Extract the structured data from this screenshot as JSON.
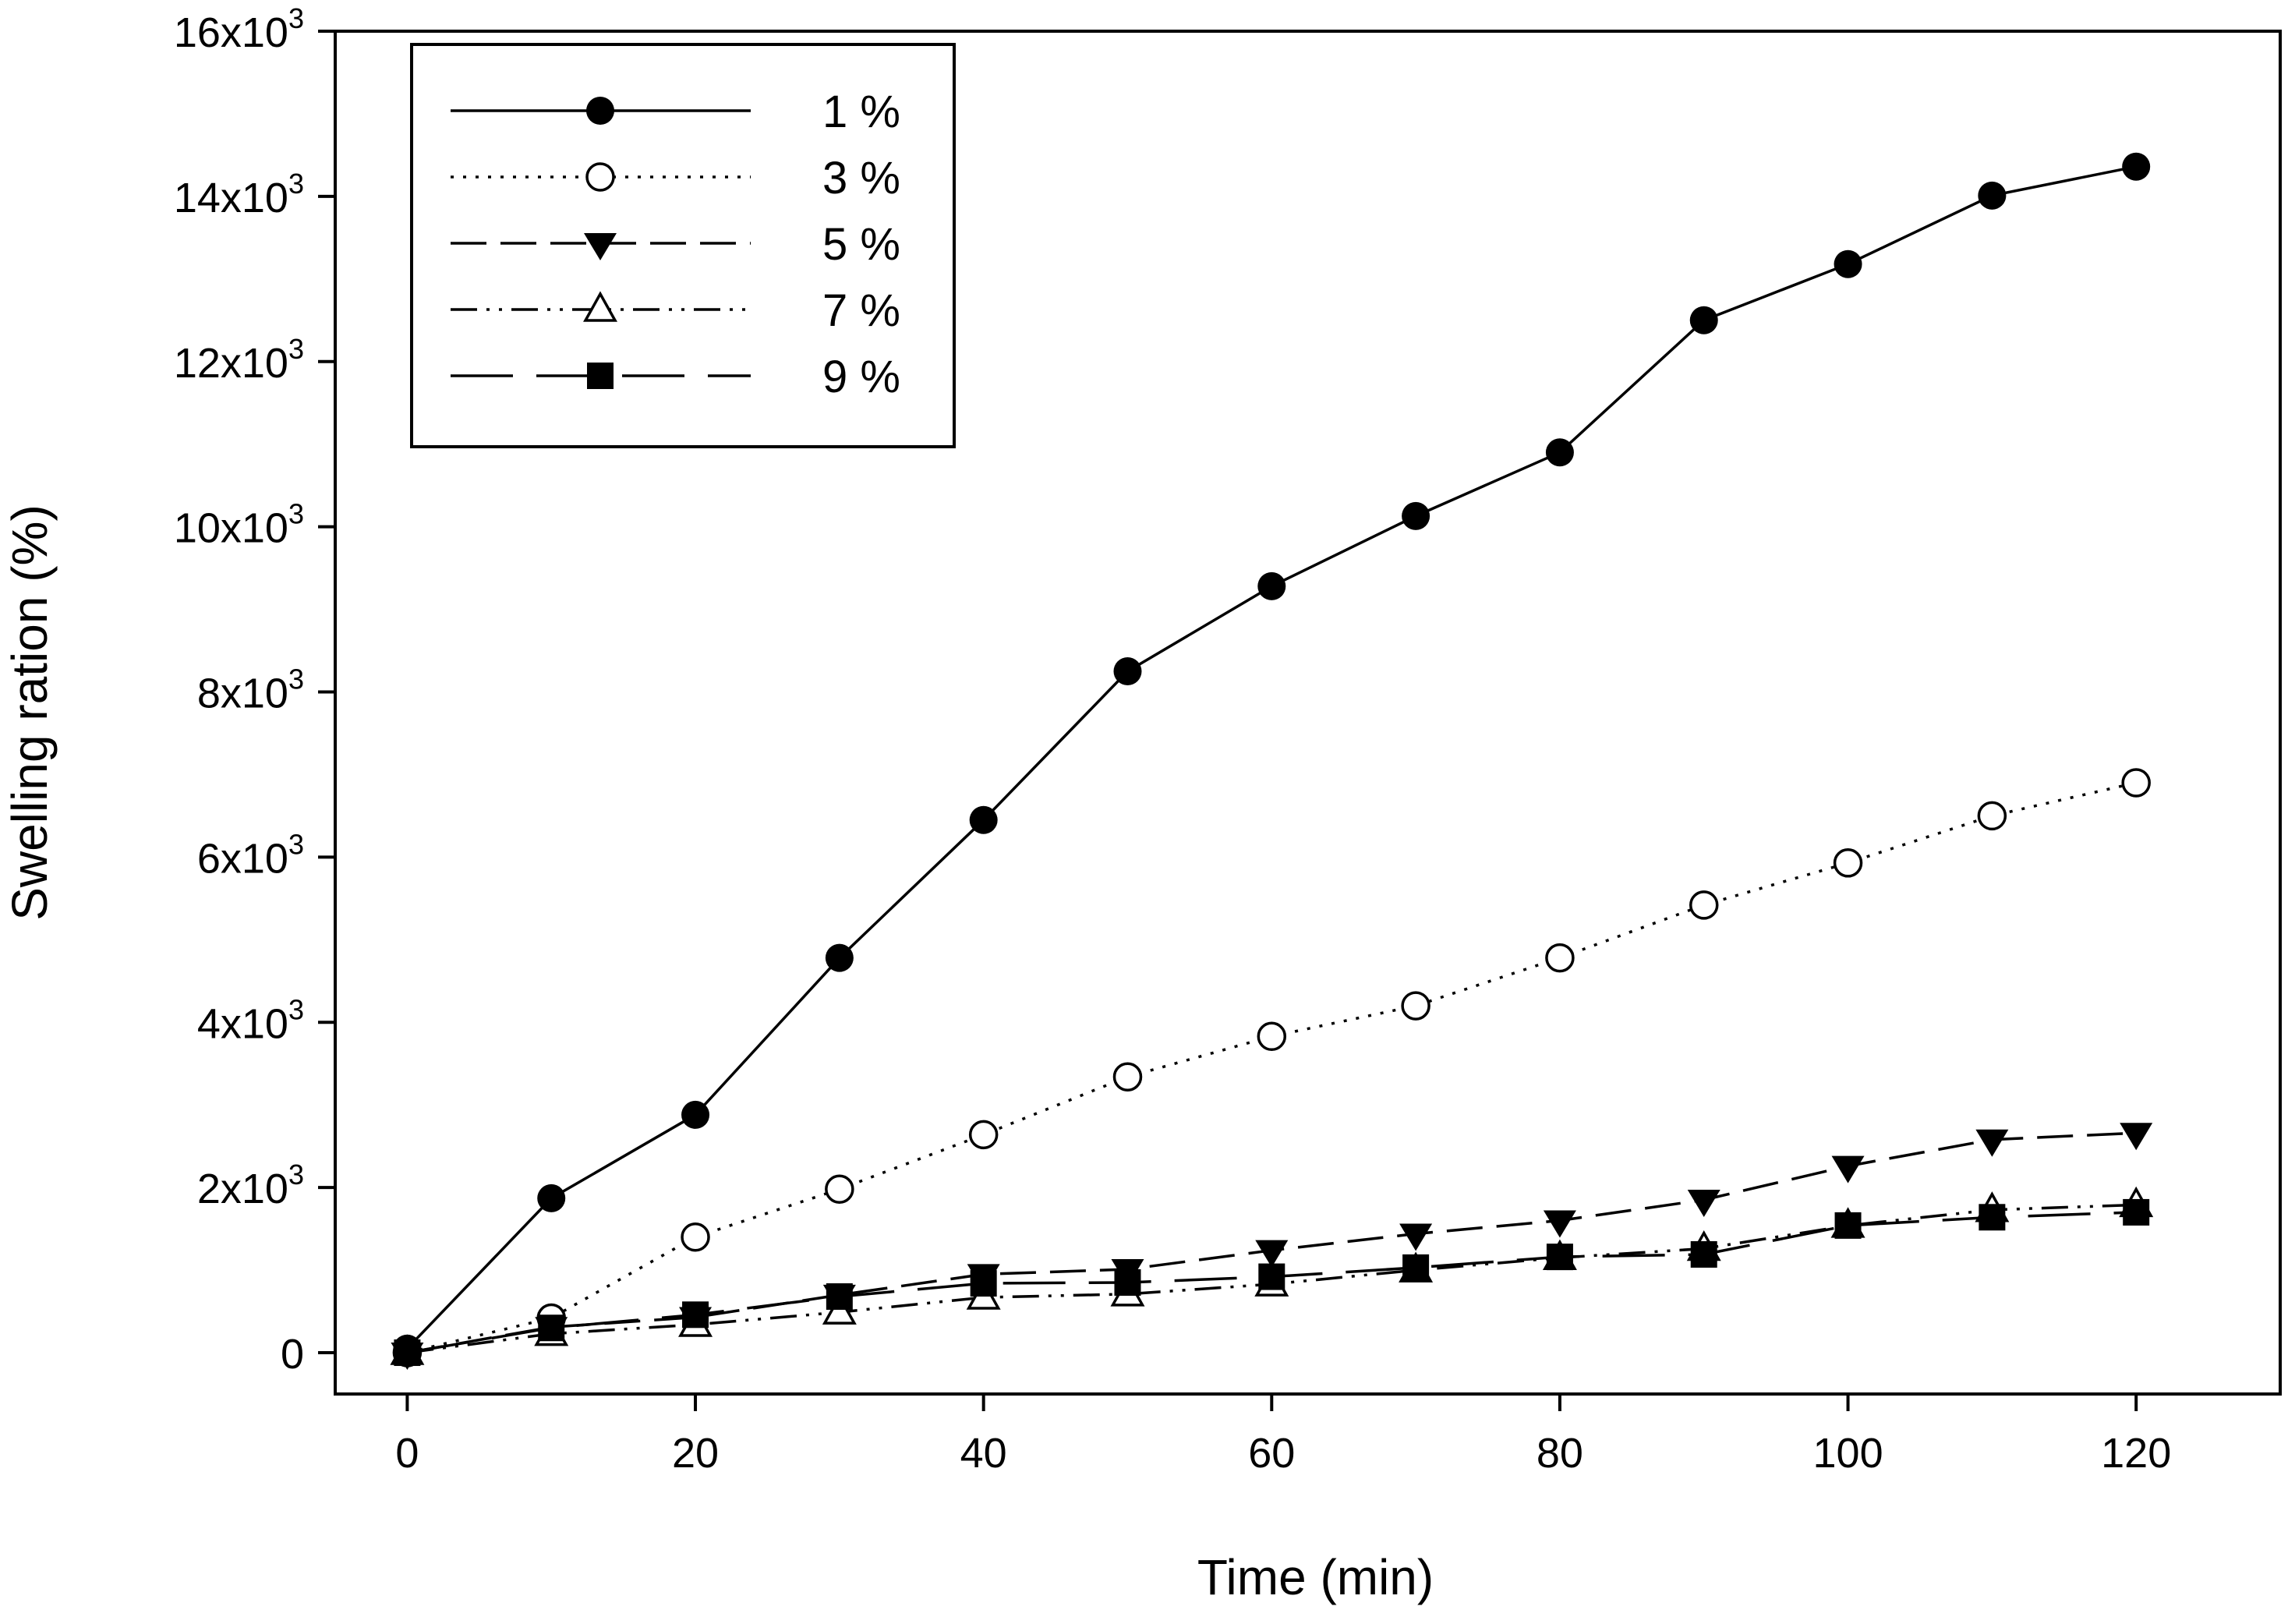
{
  "chart_data": {
    "type": "line",
    "title": "",
    "xlabel": "Time (min)",
    "ylabel": "Swelling ration (%)",
    "xlim": [
      -5,
      130
    ],
    "ylim": [
      -500,
      16000
    ],
    "x_ticks": [
      0,
      20,
      40,
      60,
      80,
      100,
      120
    ],
    "x_tick_labels": [
      "0",
      "20",
      "40",
      "60",
      "80",
      "100",
      "120"
    ],
    "y_ticks": [
      0,
      2000,
      4000,
      6000,
      8000,
      10000,
      12000,
      14000,
      16000
    ],
    "y_tick_labels": [
      {
        "base": "0",
        "exp": ""
      },
      {
        "base": "2x10",
        "exp": "3"
      },
      {
        "base": "4x10",
        "exp": "3"
      },
      {
        "base": "6x10",
        "exp": "3"
      },
      {
        "base": "8x10",
        "exp": "3"
      },
      {
        "base": "10x10",
        "exp": "3"
      },
      {
        "base": "12x10",
        "exp": "3"
      },
      {
        "base": "14x10",
        "exp": "3"
      },
      {
        "base": "16x10",
        "exp": "3"
      }
    ],
    "grid": false,
    "legend_position": "top-left",
    "x": [
      0,
      10,
      20,
      30,
      40,
      50,
      60,
      70,
      80,
      90,
      100,
      110,
      120
    ],
    "series": [
      {
        "name": "1 %",
        "marker": "filled-circle",
        "dash": "solid",
        "values": [
          50,
          1870,
          2880,
          4780,
          6450,
          8250,
          9280,
          10130,
          10900,
          12500,
          13180,
          14010,
          14360
        ]
      },
      {
        "name": "3 %",
        "marker": "open-circle",
        "dash": "dotted",
        "values": [
          0,
          420,
          1400,
          1980,
          2640,
          3340,
          3830,
          4200,
          4780,
          5420,
          5930,
          6500,
          6900
        ]
      },
      {
        "name": "5 %",
        "marker": "filled-triangle-down",
        "dash": "dashed",
        "values": [
          0,
          310,
          430,
          700,
          950,
          1010,
          1240,
          1440,
          1600,
          1850,
          2260,
          2580,
          2660
        ]
      },
      {
        "name": "7 %",
        "marker": "open-triangle-up",
        "dash": "dash-dot-dot",
        "values": [
          0,
          230,
          340,
          490,
          670,
          710,
          830,
          1000,
          1150,
          1260,
          1540,
          1730,
          1790
        ]
      },
      {
        "name": "9 %",
        "marker": "filled-square",
        "dash": "long-dash",
        "values": [
          0,
          300,
          460,
          680,
          840,
          850,
          920,
          1030,
          1160,
          1190,
          1540,
          1640,
          1700
        ]
      }
    ]
  }
}
